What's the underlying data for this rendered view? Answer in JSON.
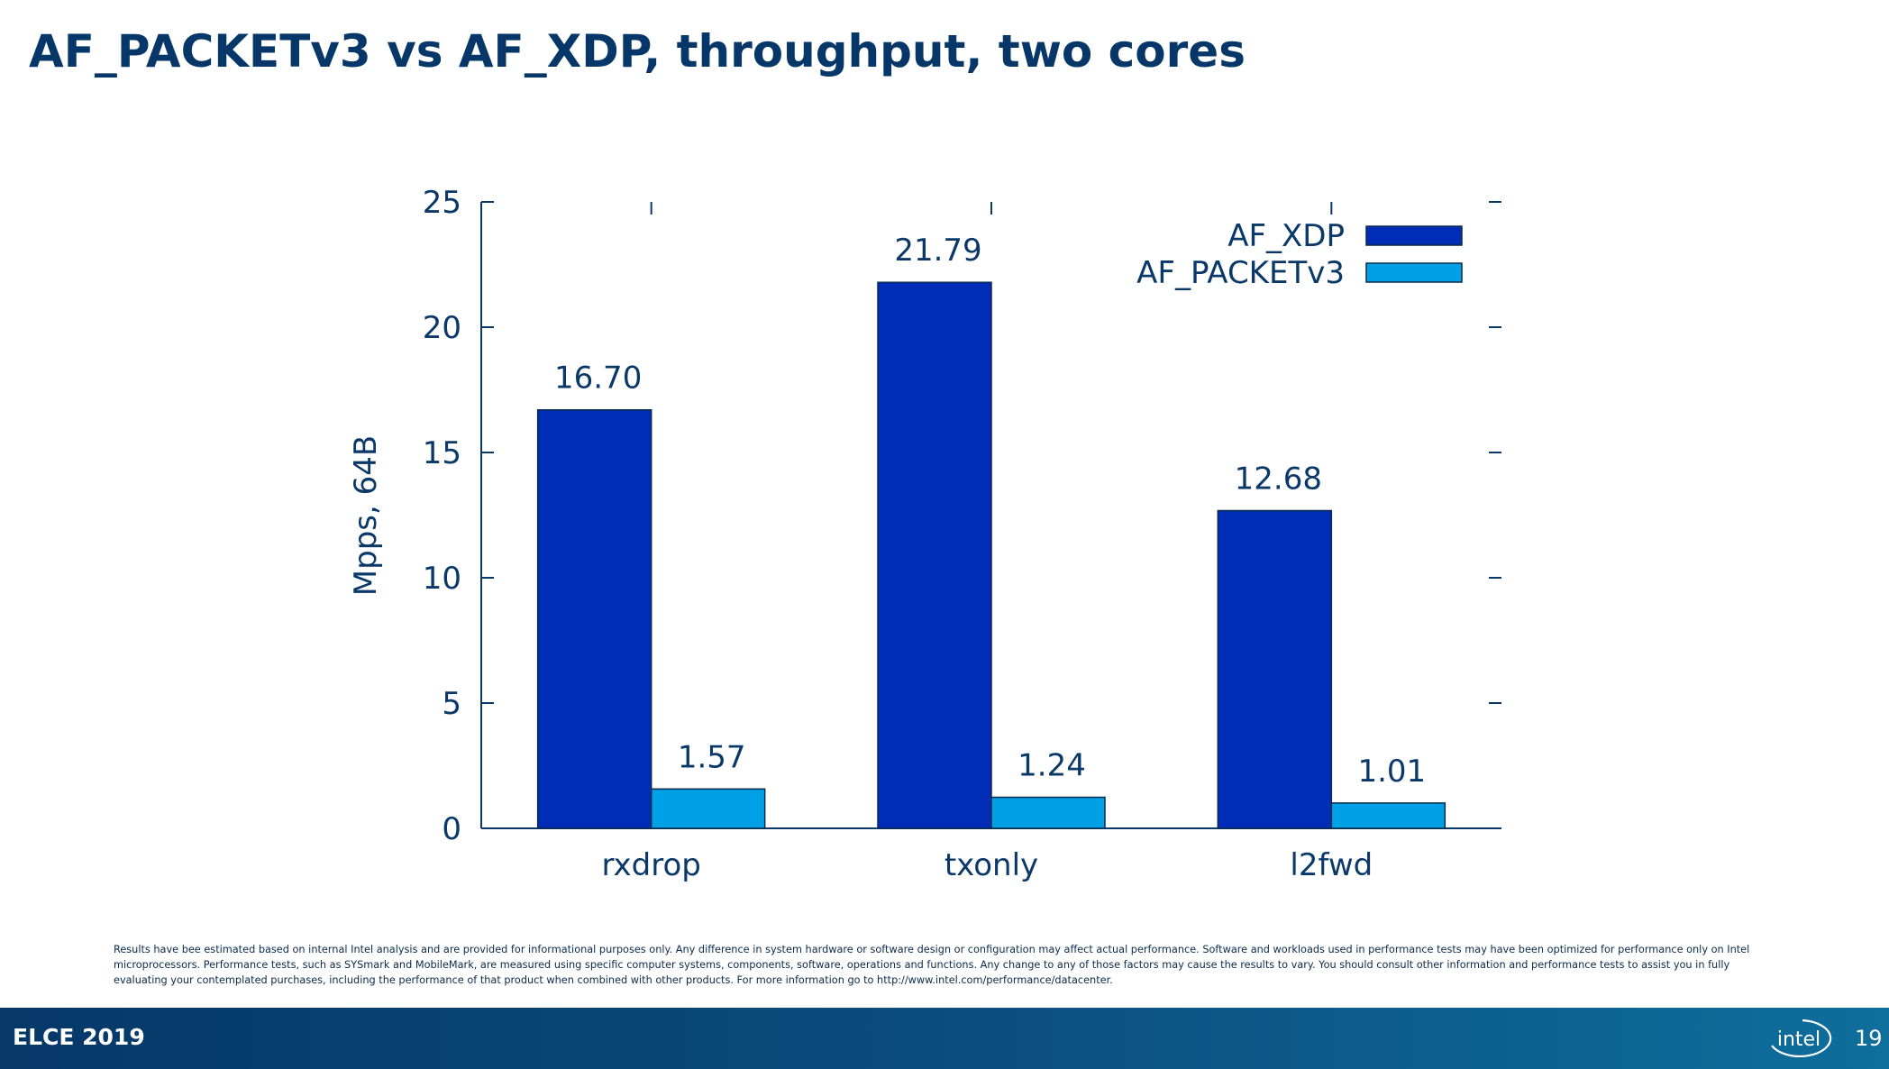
{
  "slide": {
    "title": "AF_PACKETv3 vs AF_XDP, throughput, two cores",
    "disclaimer": "Results have bee estimated based on internal Intel analysis and are provided for informational purposes only. Any difference in system hardware or software design or configuration may affect actual performance. Software and workloads used in performance tests may have been optimized for performance only on Intel microprocessors. Performance tests, such as SYSmark and MobileMark, are measured using specific computer systems, components, software, operations and functions. Any change to any of those factors may cause the results to vary. You should consult other information and performance tests to assist you in fully evaluating your contemplated purchases, including the performance of that product when combined with other products. For more information go to http://www.intel.com/performance/datacenter.",
    "footer_label": "ELCE 2019",
    "logo_text": "intel",
    "page_number": "19"
  },
  "colors": {
    "title": "#063768",
    "text": "#0a3868",
    "af_xdp": "#002cb8",
    "af_packetv3": "#00a0e6"
  },
  "chart_data": {
    "type": "bar",
    "categories": [
      "rxdrop",
      "txonly",
      "l2fwd"
    ],
    "series": [
      {
        "name": "AF_XDP",
        "values": [
          16.7,
          21.79,
          12.68
        ],
        "labels": [
          "16.70",
          "21.79",
          "12.68"
        ]
      },
      {
        "name": "AF_PACKETv3",
        "values": [
          1.57,
          1.24,
          1.01
        ],
        "labels": [
          "1.57",
          "1.24",
          "1.01"
        ]
      }
    ],
    "ylabel": "Mpps, 64B",
    "xlabel": "",
    "ylim": [
      0,
      25
    ],
    "yticks": [
      "0",
      "5",
      "10",
      "15",
      "20",
      "25"
    ],
    "legend_position": "top-right",
    "grid": false
  }
}
